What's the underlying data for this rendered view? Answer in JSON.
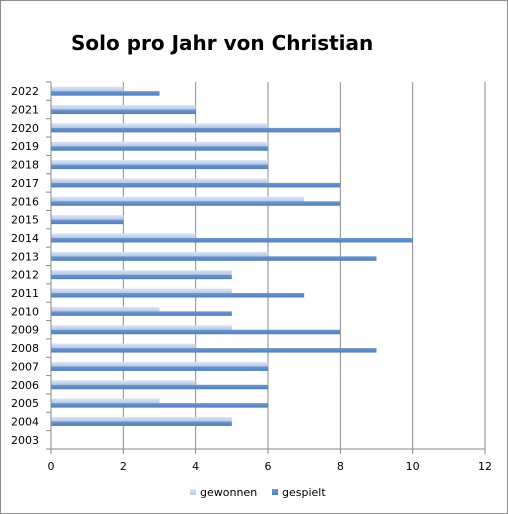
{
  "chart_data": {
    "type": "bar",
    "orientation": "horizontal",
    "title": "Solo pro Jahr von Christian",
    "xlabel": "",
    "ylabel": "",
    "categories": [
      "2003",
      "2004",
      "2005",
      "2006",
      "2007",
      "2008",
      "2009",
      "2010",
      "2011",
      "2012",
      "2013",
      "2014",
      "2015",
      "2016",
      "2017",
      "2018",
      "2019",
      "2020",
      "2021",
      "2022"
    ],
    "series": [
      {
        "name": "gewonnen",
        "color": "#b4c8e8",
        "values": [
          0,
          5,
          3,
          4,
          6,
          4,
          5,
          3,
          5,
          5,
          6,
          4,
          2,
          7,
          6,
          6,
          6,
          6,
          4,
          2
        ]
      },
      {
        "name": "gespielt",
        "color": "#4f81bd",
        "values": [
          0,
          5,
          6,
          6,
          6,
          9,
          8,
          5,
          7,
          5,
          9,
          10,
          2,
          8,
          8,
          6,
          6,
          8,
          4,
          3
        ]
      }
    ],
    "xlim": [
      0,
      12
    ],
    "xticks": [
      "0",
      "2",
      "4",
      "6",
      "8",
      "10",
      "12"
    ],
    "grid": true,
    "legend_position": "bottom"
  }
}
